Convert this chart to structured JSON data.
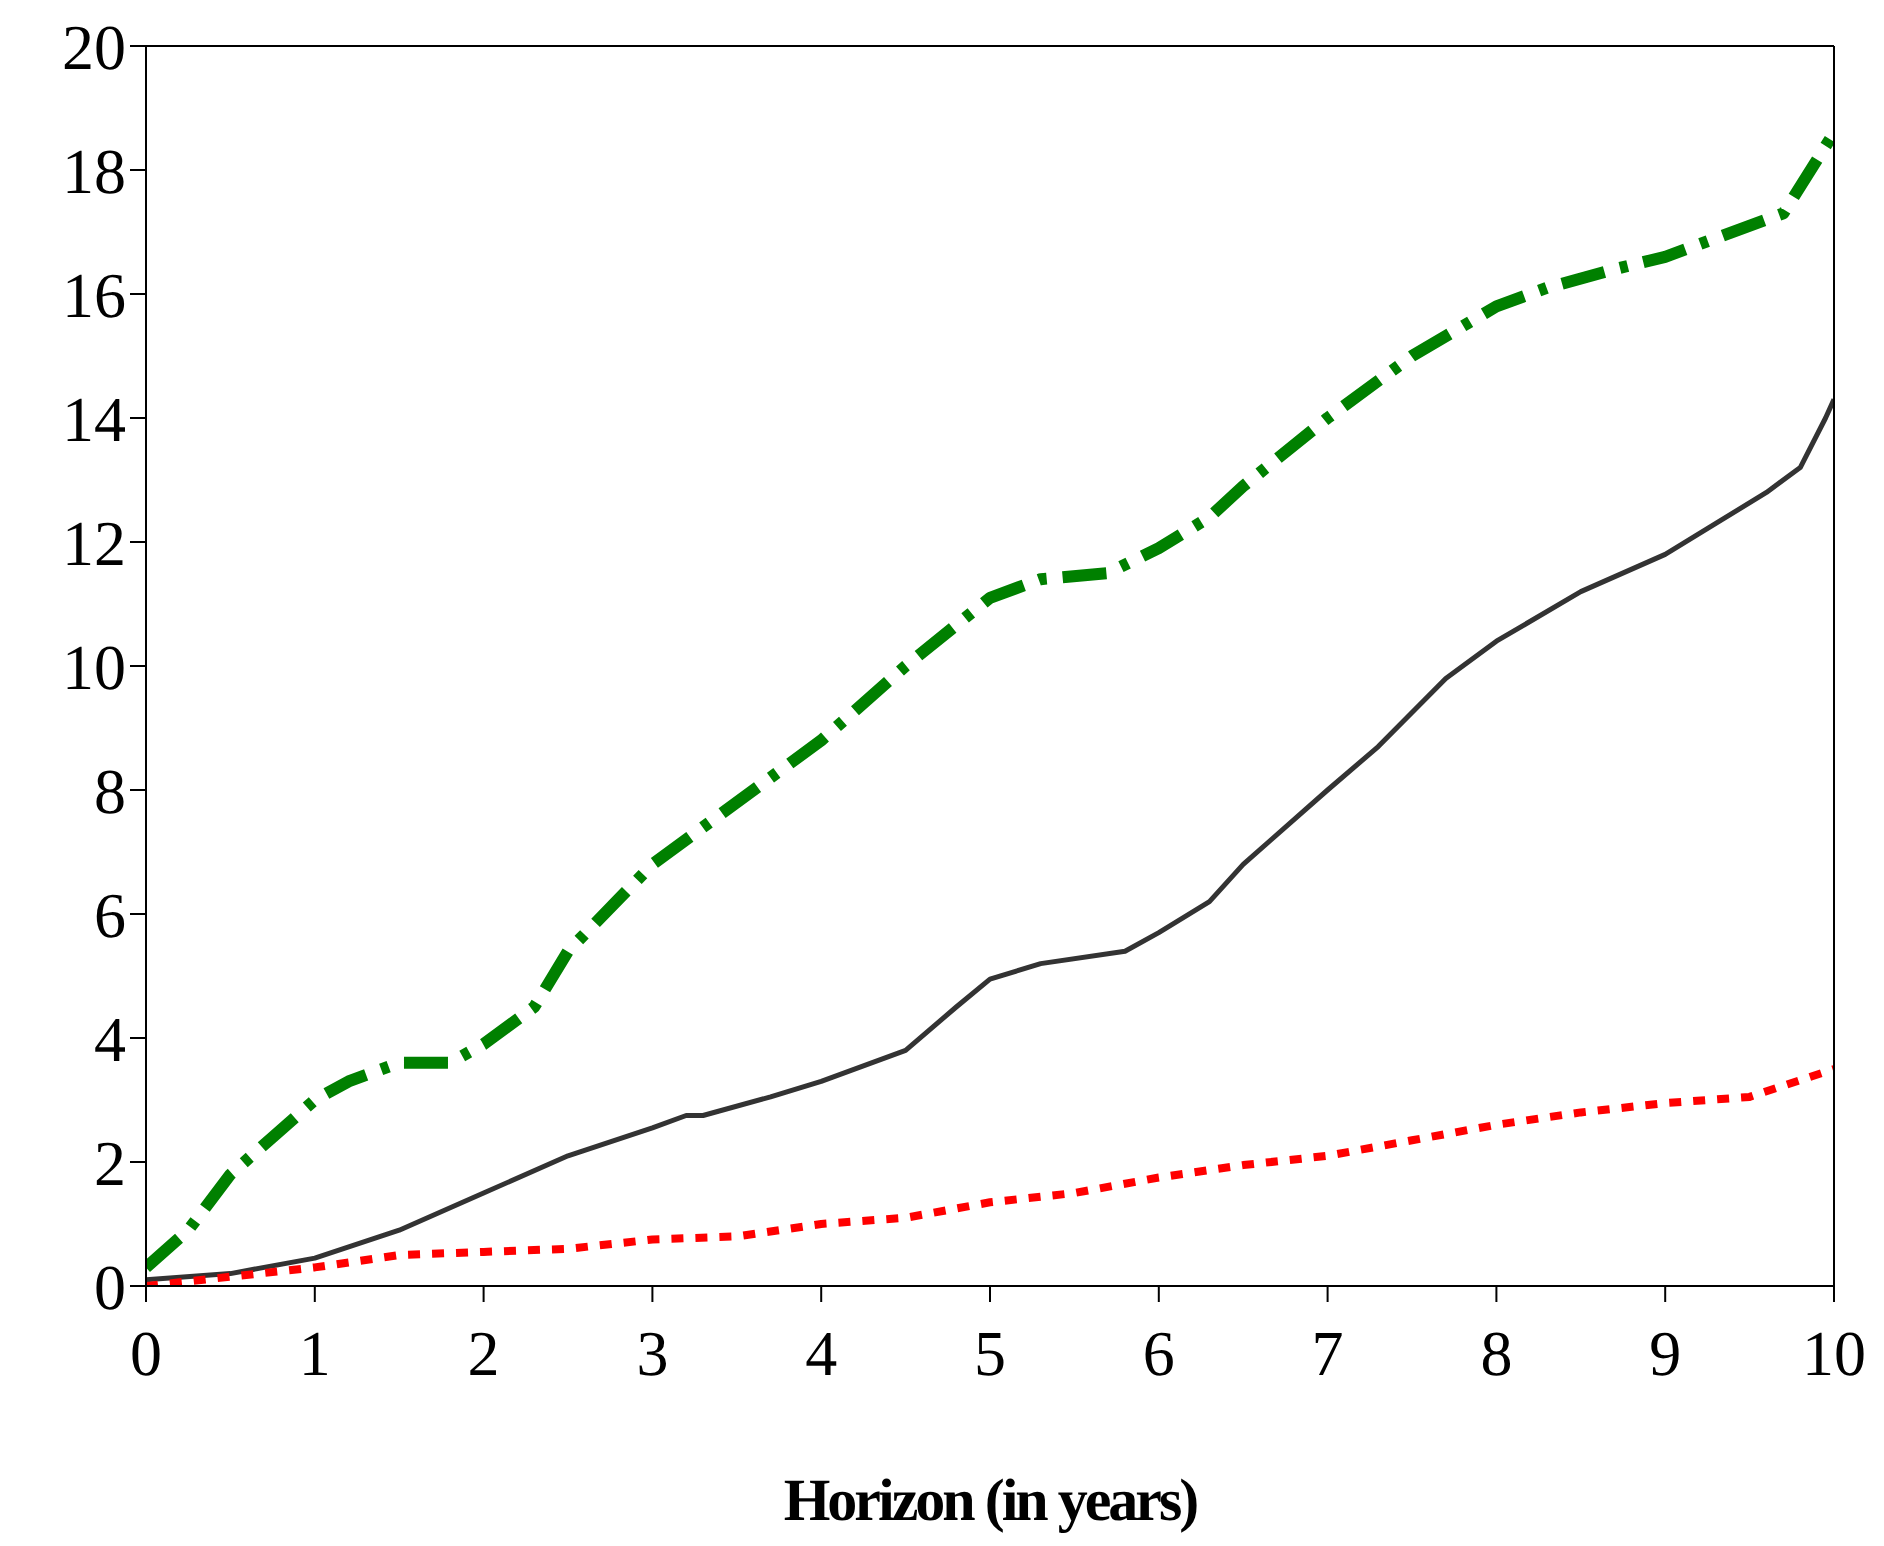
{
  "chart_data": {
    "type": "line",
    "xlabel": "Horizon (in years)",
    "xlim": [
      0,
      10
    ],
    "xticks": [
      0,
      1,
      2,
      3,
      4,
      5,
      6,
      7,
      8,
      9,
      10
    ],
    "ylim": [
      0,
      20
    ],
    "yticks": [
      0,
      2,
      4,
      6,
      8,
      10,
      12,
      14,
      16,
      18,
      20
    ],
    "marker": "none",
    "series": [
      {
        "color": "#008000",
        "line_style": "dashed",
        "x": [
          0,
          0.25,
          0.5,
          0.75,
          1,
          1.2,
          1.5,
          1.8,
          2,
          2.3,
          2.5,
          3,
          3.3,
          3.7,
          4,
          4.5,
          5,
          5.3,
          5.7,
          6,
          6.3,
          6.5,
          7,
          7.5,
          8,
          8.3,
          8.7,
          9,
          9.3,
          9.7,
          10
        ],
        "values": [
          0.3,
          0.9,
          1.8,
          2.4,
          3.0,
          3.3,
          3.6,
          3.6,
          3.9,
          4.5,
          5.4,
          6.8,
          7.4,
          8.2,
          8.8,
          10.0,
          11.1,
          11.4,
          11.5,
          11.9,
          12.4,
          12.9,
          14.0,
          15.0,
          15.8,
          16.1,
          16.4,
          16.6,
          16.9,
          17.3,
          18.6
        ]
      },
      {
        "color": "#333333",
        "line_style": "solid",
        "x": [
          0,
          0.5,
          1,
          1.5,
          2,
          2.5,
          3,
          3.2,
          3.3,
          3.7,
          4,
          4.5,
          4.8,
          5,
          5.3,
          5.8,
          6,
          6.3,
          6.5,
          7,
          7.3,
          7.7,
          8,
          8.5,
          9,
          9.3,
          9.6,
          9.8,
          9.95,
          10
        ],
        "values": [
          0.1,
          0.2,
          0.45,
          0.9,
          1.5,
          2.1,
          2.55,
          2.75,
          2.75,
          3.05,
          3.3,
          3.8,
          4.5,
          4.95,
          5.2,
          5.4,
          5.7,
          6.2,
          6.8,
          8.0,
          8.7,
          9.8,
          10.4,
          11.2,
          11.8,
          12.3,
          12.8,
          13.2,
          14.0,
          14.3
        ]
      },
      {
        "color": "#ff0000",
        "line_style": "dotted",
        "x": [
          0,
          0.5,
          1,
          1.5,
          2,
          2.5,
          3,
          3.5,
          4,
          4.5,
          5,
          5.5,
          6,
          6.5,
          7,
          7.5,
          8,
          8.5,
          9,
          9.5,
          10
        ],
        "values": [
          0,
          0.15,
          0.3,
          0.5,
          0.55,
          0.6,
          0.75,
          0.8,
          1.0,
          1.1,
          1.35,
          1.5,
          1.75,
          1.95,
          2.1,
          2.35,
          2.6,
          2.8,
          2.95,
          3.05,
          3.5
        ]
      }
    ]
  }
}
